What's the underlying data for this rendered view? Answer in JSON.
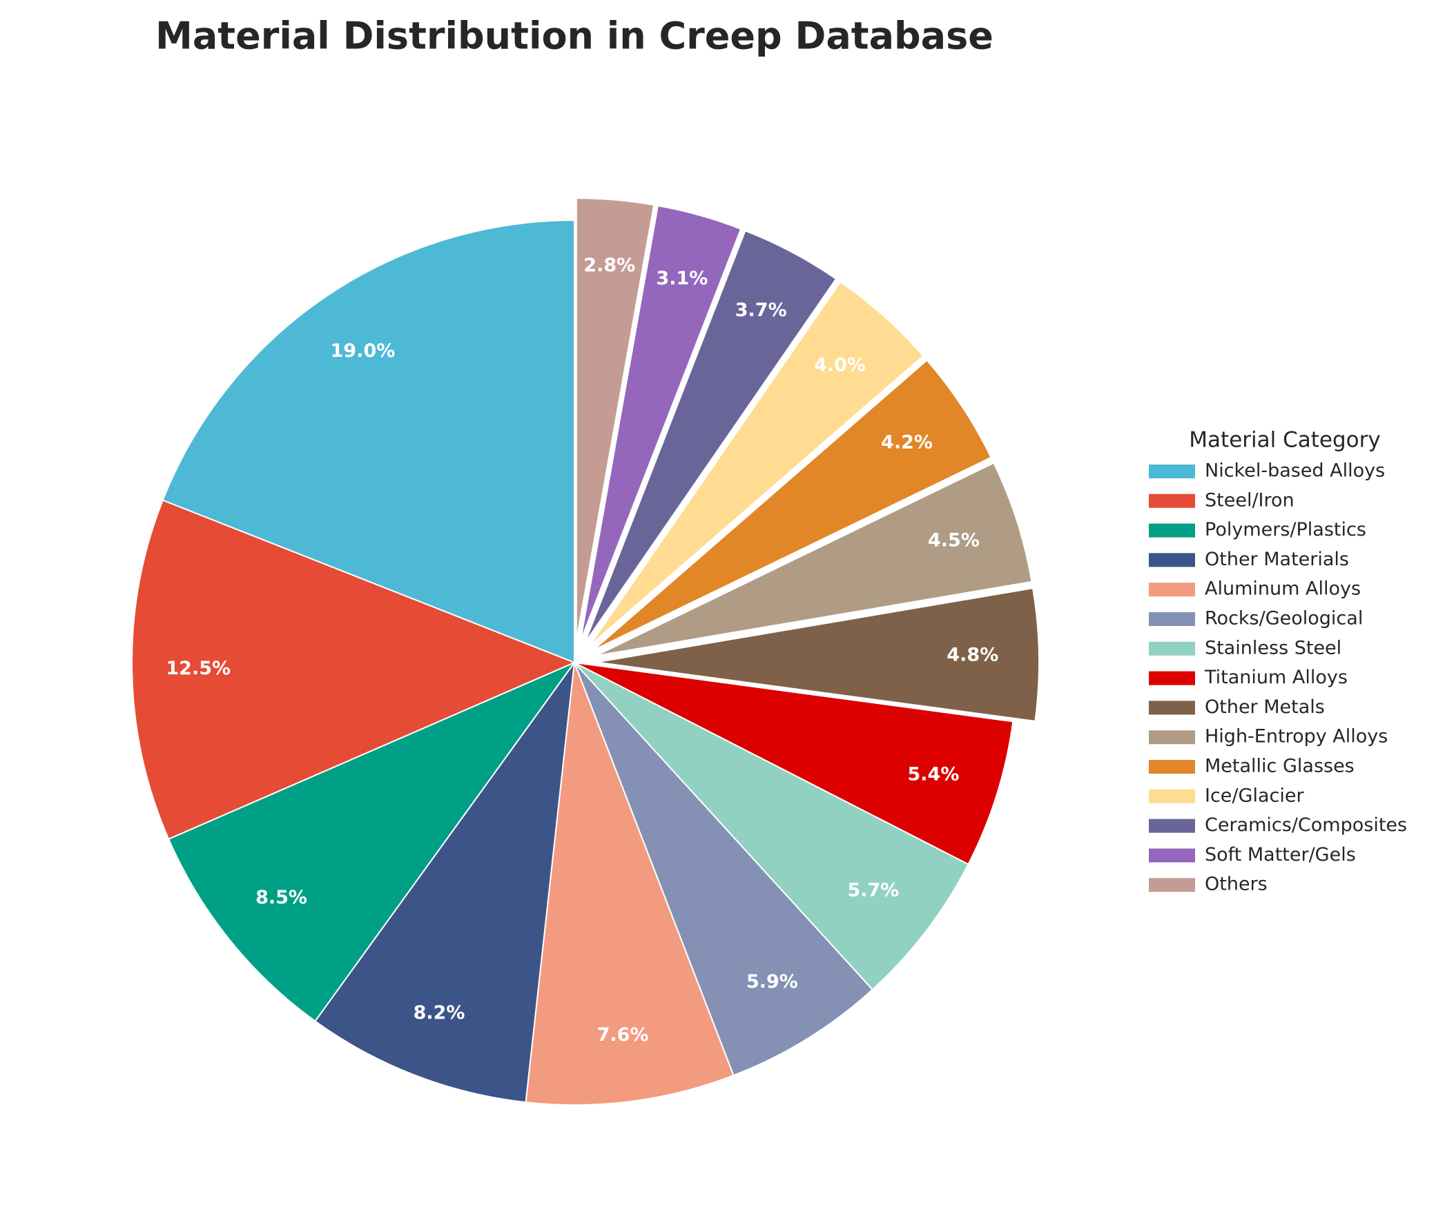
{
  "chart_data": {
    "type": "pie",
    "title": "Material Distribution in Creep Database",
    "legend_title": "Material Category",
    "legend": "right",
    "categories": [
      "Nickel-based Alloys",
      "Steel/Iron",
      "Polymers/Plastics",
      "Other Materials",
      "Aluminum Alloys",
      "Rocks/Geological",
      "Stainless Steel",
      "Titanium Alloys",
      "Other Metals",
      "High-Entropy Alloys",
      "Metallic Glasses",
      "Ice/Glacier",
      "Ceramics/Composites",
      "Soft Matter/Gels",
      "Others"
    ],
    "values": [
      19.0,
      12.5,
      8.5,
      8.2,
      7.6,
      5.9,
      5.7,
      5.4,
      4.8,
      4.5,
      4.2,
      4.0,
      3.7,
      3.1,
      2.8
    ],
    "value_labels": [
      "19.0%",
      "12.5%",
      "8.5%",
      "8.2%",
      "7.6%",
      "5.9%",
      "5.7%",
      "5.4%",
      "4.8%",
      "4.5%",
      "4.2%",
      "4.0%",
      "3.7%",
      "3.1%",
      "2.8%"
    ],
    "colors": [
      "#4eb9d5",
      "#e64b35",
      "#00a087",
      "#3c5488",
      "#f39b7f",
      "#8491b4",
      "#91d1c2",
      "#dc0000",
      "#7e6148",
      "#b09c85",
      "#e18727",
      "#ffdc91",
      "#6a6599",
      "#9467bd",
      "#c49c94"
    ],
    "exploded": [
      false,
      false,
      false,
      false,
      false,
      false,
      false,
      false,
      true,
      true,
      true,
      true,
      true,
      true,
      true
    ]
  }
}
